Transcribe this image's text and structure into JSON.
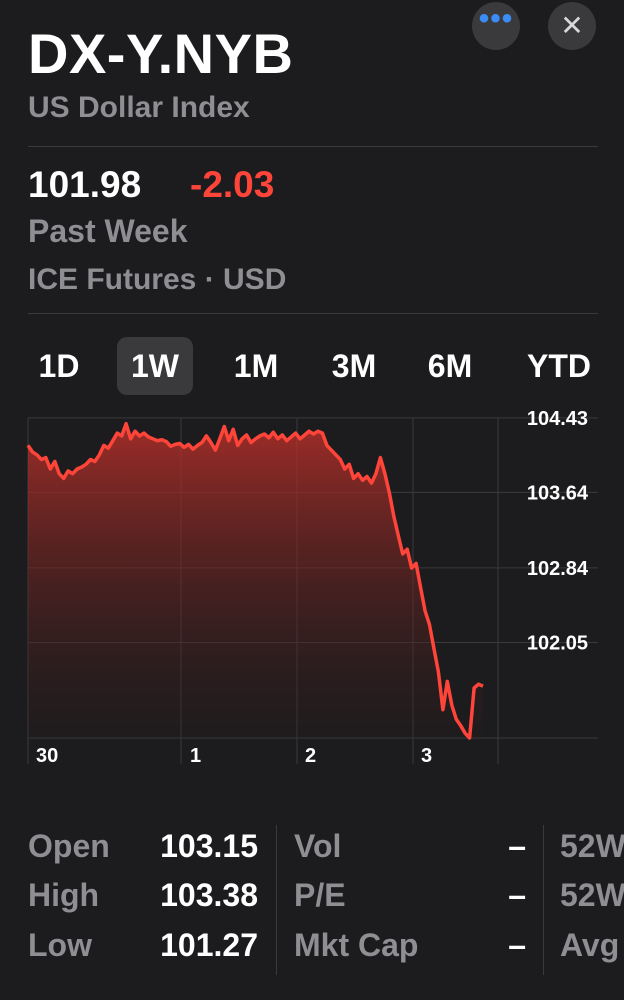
{
  "header": {
    "more_label": "•••",
    "close_label": "✕",
    "symbol": "DX-Y.NYB",
    "name": "US Dollar Index"
  },
  "quote": {
    "price": "101.98",
    "change": "-2.03",
    "period": "Past Week",
    "exchange": "ICE Futures · USD"
  },
  "colors": {
    "background": "#1c1c1e",
    "negative": "#ff453a",
    "secondary_text": "#8e8e93",
    "accent": "#3b8cf5"
  },
  "tabs": [
    {
      "label": "1D",
      "active": false
    },
    {
      "label": "1W",
      "active": true
    },
    {
      "label": "1M",
      "active": false
    },
    {
      "label": "3M",
      "active": false
    },
    {
      "label": "6M",
      "active": false
    },
    {
      "label": "YTD",
      "active": false
    }
  ],
  "chart_data": {
    "type": "area",
    "x_tick_labels": [
      "30",
      "1",
      "2",
      "3"
    ],
    "y_tick_labels": [
      "104.43",
      "103.64",
      "102.84",
      "102.05"
    ],
    "y_ticks": [
      104.43,
      103.64,
      102.84,
      102.05
    ],
    "ylim": [
      101.25,
      104.64
    ],
    "grid": true,
    "series": [
      {
        "values": [
          104.35,
          104.28,
          104.25,
          104.2,
          104.22,
          104.1,
          104.18,
          104.05,
          104.0,
          104.08,
          104.05,
          104.1,
          104.12,
          104.15,
          104.2,
          104.18,
          104.25,
          104.35,
          104.32,
          104.4,
          104.48,
          104.45,
          104.58,
          104.42,
          104.5,
          104.45,
          104.48,
          104.44,
          104.42,
          104.4,
          104.41,
          104.39,
          104.34,
          104.36,
          104.37,
          104.33,
          104.36,
          104.31,
          104.35,
          104.38,
          104.45,
          104.38,
          104.3,
          104.42,
          104.55,
          104.4,
          104.52,
          104.35,
          104.42,
          104.46,
          104.38,
          104.42,
          104.45,
          104.47,
          104.43,
          104.49,
          104.42,
          104.46,
          104.4,
          104.44,
          104.48,
          104.42,
          104.46,
          104.5,
          104.47,
          104.5,
          104.48,
          104.35,
          104.3,
          104.25,
          104.2,
          104.1,
          104.15,
          104.0,
          104.05,
          103.98,
          104.02,
          103.95,
          104.05,
          104.22,
          104.05,
          103.85,
          103.6,
          103.4,
          103.2,
          103.25,
          103.05,
          103.1,
          102.85,
          102.6,
          102.45,
          102.2,
          101.95,
          101.55,
          101.85,
          101.6,
          101.45,
          101.38,
          101.3,
          101.25,
          101.78,
          101.82,
          101.8
        ]
      }
    ]
  },
  "stats": {
    "col1": [
      {
        "label": "Open",
        "value": "103.15"
      },
      {
        "label": "High",
        "value": "103.38"
      },
      {
        "label": "Low",
        "value": "101.27"
      }
    ],
    "col2": [
      {
        "label": "Vol",
        "value": "–"
      },
      {
        "label": "P/E",
        "value": "–"
      },
      {
        "label": "Mkt Cap",
        "value": "–"
      }
    ],
    "col3": [
      {
        "label": "52W"
      },
      {
        "label": "52W"
      },
      {
        "label": "Avg"
      }
    ]
  }
}
